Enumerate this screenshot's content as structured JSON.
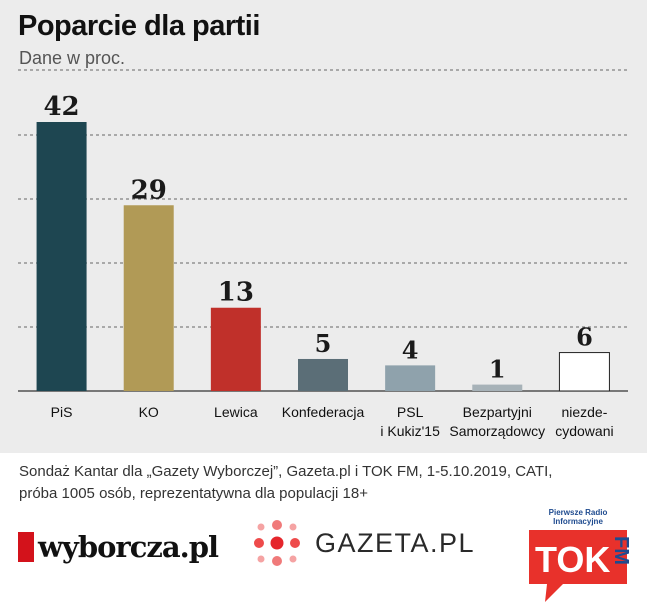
{
  "chart_data": {
    "type": "bar",
    "title": "Poparcie dla partii",
    "subtitle": "Dane w proc.",
    "categories": [
      [
        "PiS"
      ],
      [
        "KO"
      ],
      [
        "Lewica"
      ],
      [
        "Konfederacja"
      ],
      [
        "PSL",
        "i Kukiz'15"
      ],
      [
        "Bezpartyjni",
        "Samorządowcy"
      ],
      [
        "niezde-",
        "cydowani"
      ]
    ],
    "values": [
      42,
      29,
      13,
      5,
      4,
      1,
      6
    ],
    "value_labels": [
      "42",
      "29",
      "13",
      "5",
      "4",
      "1",
      "6"
    ],
    "colors": [
      "#1e4651",
      "#b19a56",
      "#c0302a",
      "#5b6e77",
      "#8fa2ac",
      "#a7b2b8",
      "#ffffff"
    ],
    "ylim": [
      0,
      42
    ],
    "grid": true
  },
  "footer": {
    "line1": "Sondaż Kantar dla „Gazety Wyborczej”, Gazeta.pl i TOK FM, 1-5.10.2019, CATI,",
    "line2": "próba 1005 osób, reprezentatywna dla populacji 18+"
  },
  "logos": {
    "wyborcza": "wyborcza.pl",
    "gazeta": "GAZETA.PL",
    "tok": "TOK",
    "fm": "FM",
    "tok_caption": "Pierwsze Radio Informacyjne"
  }
}
